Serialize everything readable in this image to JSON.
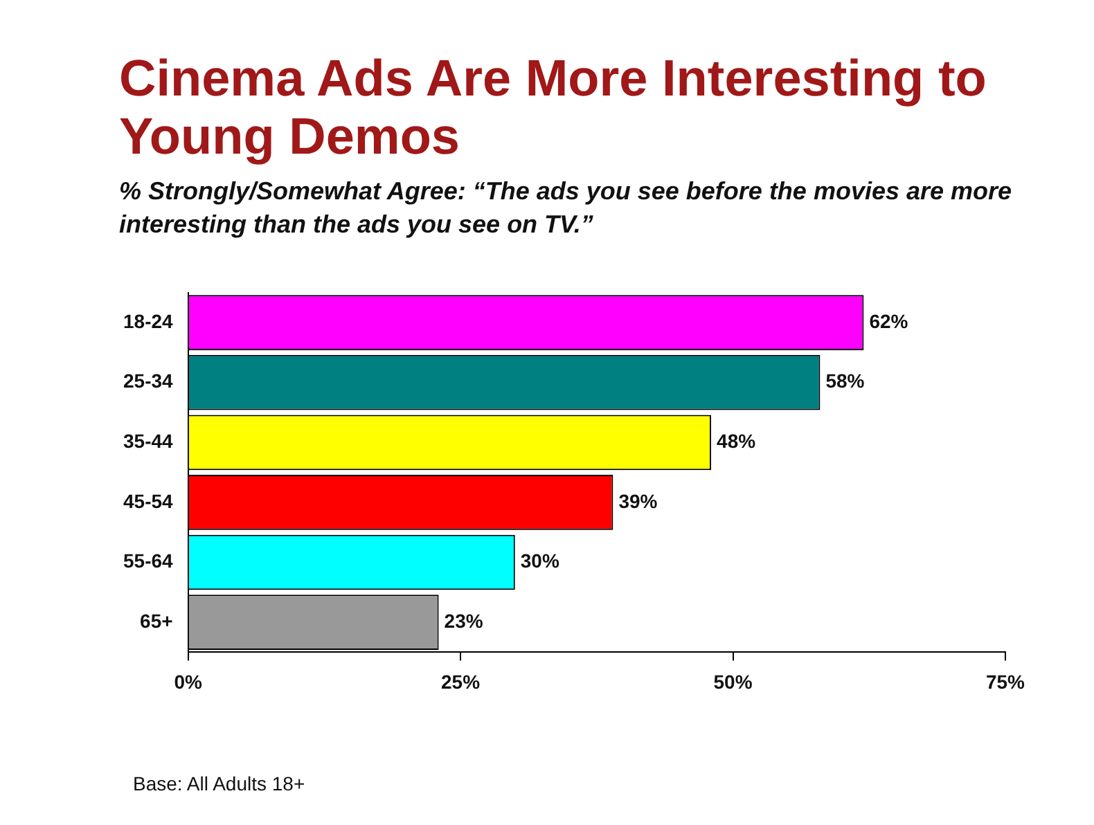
{
  "chart_data": {
    "type": "bar",
    "orientation": "horizontal",
    "title": "Cinema Ads Are More Interesting to Young Demos",
    "subtitle": "% Strongly/Somewhat Agree: “The ads you see before the movies are more interesting than the ads you see on TV.”",
    "categories": [
      "18-24",
      "25-34",
      "35-44",
      "45-54",
      "55-64",
      "65+"
    ],
    "values": [
      62,
      58,
      48,
      39,
      30,
      23
    ],
    "colors": [
      "#ff00ff",
      "#008080",
      "#ffff00",
      "#ff0000",
      "#00ffff",
      "#999999"
    ],
    "value_labels": [
      "62%",
      "58%",
      "48%",
      "39%",
      "30%",
      "23%"
    ],
    "xlim": [
      0,
      75
    ],
    "xticks": [
      {
        "value": 0,
        "label": "0%"
      },
      {
        "value": 25,
        "label": "25%"
      },
      {
        "value": 50,
        "label": "50%"
      },
      {
        "value": 75,
        "label": "75%"
      }
    ],
    "grid": false,
    "annotations": [
      "Base: All Adults 18+"
    ]
  }
}
